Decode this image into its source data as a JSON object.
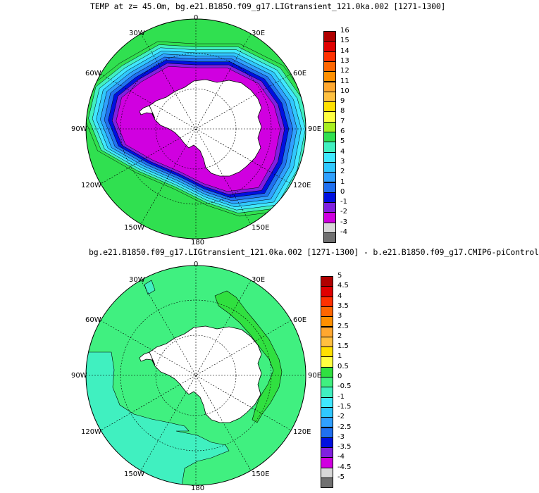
{
  "panels": [
    {
      "title": "TEMP at z=  45.0m, bg.e21.B1850.f09_g17.LIGtransient_121.0ka.002 [1271-1300]",
      "lon_labels": {
        "top": "0",
        "n30w": "30W",
        "n30e": "30E",
        "w60": "60W",
        "e60": "60E",
        "w90": "90W",
        "e90": "90E",
        "w120": "120W",
        "e120": "120E",
        "s150w": "150W",
        "s150e": "150E",
        "bottom": "180"
      },
      "colorbar": {
        "labels": [
          "16",
          "15",
          "14",
          "13",
          "12",
          "11",
          "10",
          "9",
          "8",
          "7",
          "6",
          "5",
          "4",
          "3",
          "2",
          "1",
          "0",
          "-1",
          "-2",
          "-3",
          "-4"
        ],
        "colors": [
          "#b00000",
          "#e00000",
          "#ff3000",
          "#ff6600",
          "#ff9000",
          "#ffa830",
          "#ffc040",
          "#ffe000",
          "#ffff40",
          "#a8f020",
          "#30e050",
          "#40f0c0",
          "#40e8ff",
          "#30c8ff",
          "#30a0ff",
          "#2070f0",
          "#0010e0",
          "#8020e0",
          "#d000e0",
          "#d8d8d8",
          "#707070"
        ]
      },
      "rings": [
        "#30e050",
        "#40f0c0",
        "#40e8ff",
        "#30c8ff",
        "#30a0ff",
        "#2070f0",
        "#0010e0",
        "#8020e0",
        "#d000e0"
      ]
    },
    {
      "title": "bg.e21.B1850.f09_g17.LIGtransient_121.0ka.002 [1271-1300] - b.e21.B1850.f09_g17.CMIP6-piControl",
      "lon_labels": {
        "top": "0",
        "n30w": "30W",
        "n30e": "30E",
        "w60": "60W",
        "e60": "60E",
        "w90": "90W",
        "e90": "90E",
        "w120": "120W",
        "e120": "120E",
        "s150w": "150W",
        "s150e": "150E",
        "bottom": "180"
      },
      "colorbar": {
        "labels": [
          "5",
          "4.5",
          "4",
          "3.5",
          "3",
          "2.5",
          "2",
          "1.5",
          "1",
          "0.5",
          "0",
          "-0.5",
          "-1",
          "-1.5",
          "-2",
          "-2.5",
          "-3",
          "-3.5",
          "-4",
          "-4.5",
          "-5"
        ],
        "colors": [
          "#b00000",
          "#e00000",
          "#ff3000",
          "#ff6600",
          "#ff9000",
          "#ffa830",
          "#ffc040",
          "#ffe000",
          "#ffff40",
          "#30e040",
          "#40f080",
          "#40f0c0",
          "#40e8ff",
          "#30c8ff",
          "#30a0ff",
          "#2070f0",
          "#0010e0",
          "#8020e0",
          "#d000e0",
          "#d8d8d8",
          "#707070"
        ]
      },
      "fill_colors": {
        "ocean_main": "#40f080",
        "ocean_negative": "#40f0c0",
        "ocean_positive": "#30e040"
      }
    }
  ]
}
